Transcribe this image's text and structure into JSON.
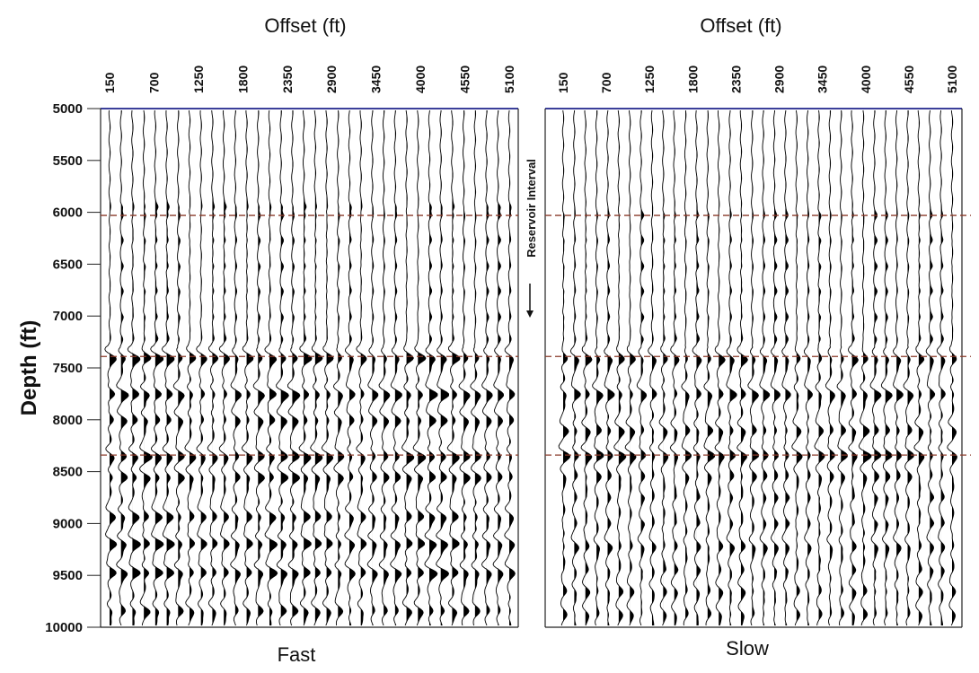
{
  "chart_data": [
    {
      "type": "seismic-wiggle",
      "xlabel": "Offset (ft)",
      "ylabel": "Depth (ft)",
      "panel_label": "Fast",
      "x_ticks": [
        150,
        700,
        1250,
        1800,
        2350,
        2900,
        3450,
        4000,
        4550,
        5100
      ],
      "y_ticks": [
        5000,
        5500,
        6000,
        6500,
        7000,
        7500,
        8000,
        8500,
        9000,
        9500,
        10000
      ],
      "xlim": [
        150,
        5100
      ],
      "ylim": [
        5000,
        10000
      ],
      "trace_count": 36,
      "horizon_depths": [
        6030,
        7390,
        8340
      ],
      "strong_events": [
        {
          "depth": 7410,
          "strength": 1.0
        },
        {
          "depth": 7760,
          "strength": 1.0
        },
        {
          "depth": 8010,
          "strength": 0.75
        },
        {
          "depth": 8360,
          "strength": 1.0
        },
        {
          "depth": 8560,
          "strength": 0.85
        },
        {
          "depth": 8940,
          "strength": 0.8
        },
        {
          "depth": 9200,
          "strength": 1.0
        },
        {
          "depth": 9480,
          "strength": 1.0
        },
        {
          "depth": 9850,
          "strength": 0.7
        }
      ],
      "weak_events": [
        5950,
        6030,
        6270,
        6520,
        6760,
        7010,
        7220
      ]
    },
    {
      "type": "seismic-wiggle",
      "xlabel": "Offset (ft)",
      "panel_label": "Slow",
      "x_ticks": [
        150,
        700,
        1250,
        1800,
        2350,
        2900,
        3450,
        4000,
        4550,
        5100
      ],
      "xlim": [
        150,
        5100
      ],
      "ylim": [
        5000,
        10000
      ],
      "trace_count": 36,
      "horizon_depths": [
        6030,
        7390,
        8340
      ],
      "strong_events": [
        {
          "depth": 7420,
          "strength": 0.75
        },
        {
          "depth": 7760,
          "strength": 0.8
        },
        {
          "depth": 8110,
          "strength": 0.7
        },
        {
          "depth": 8350,
          "strength": 1.0
        },
        {
          "depth": 8550,
          "strength": 0.45
        },
        {
          "depth": 9230,
          "strength": 0.5
        },
        {
          "depth": 9660,
          "strength": 0.45
        },
        {
          "depth": 9880,
          "strength": 0.4
        }
      ],
      "weak_events": [
        6030,
        6270,
        6520,
        6760,
        7010,
        7220,
        8750,
        9000,
        9450
      ]
    }
  ],
  "annotation": {
    "text": "Reservoir Interval"
  },
  "colors": {
    "frame": "#3b3f9a",
    "horizon": "#8a3a2a",
    "trace": "#000000"
  }
}
